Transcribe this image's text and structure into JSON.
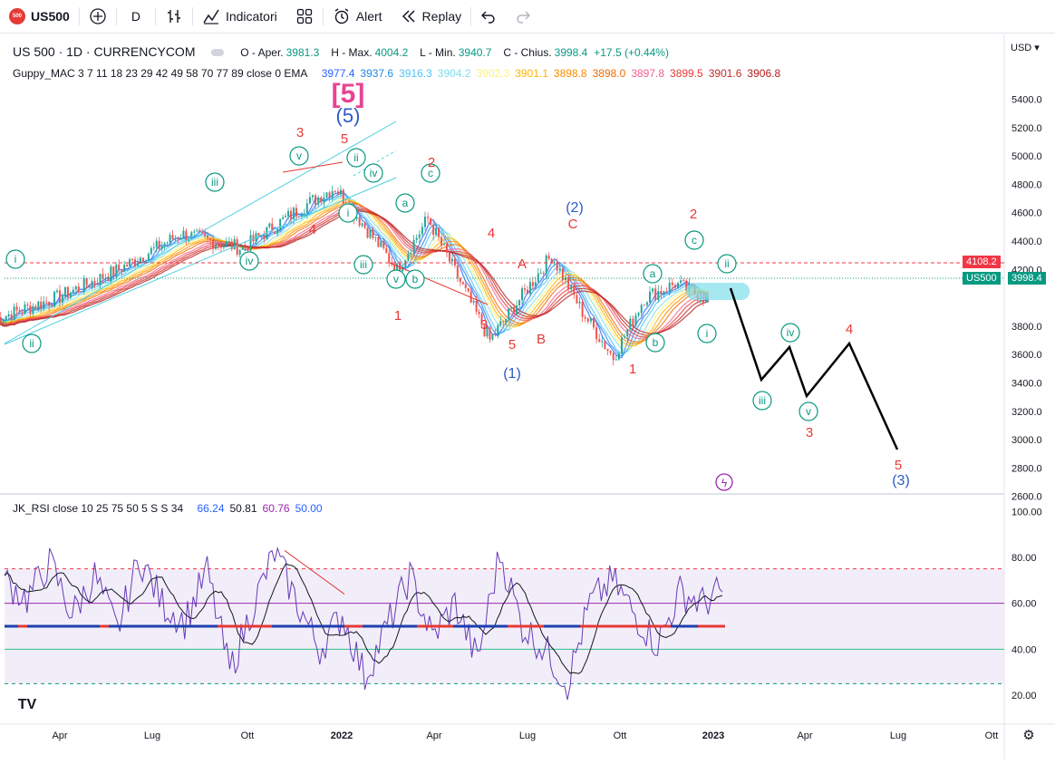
{
  "toolbar": {
    "symbol_badge": "500",
    "symbol": "US500",
    "interval": "D",
    "indicators_label": "Indicatori",
    "alert_label": "Alert",
    "replay_label": "Replay"
  },
  "legend": {
    "title": "US 500 · 1D · CURRENCYCOM",
    "o_label": "O - Aper.",
    "o_value": "3981.3",
    "h_label": "H - Max.",
    "h_value": "4004.2",
    "l_label": "L - Min.",
    "l_value": "3940.7",
    "c_label": "C - Chius.",
    "c_value": "3998.4",
    "change": "+17.5 (+0.44%)",
    "guppy_label": "Guppy_MAC 3 7 11 18 23 29 42 49 58 70 77 89 close 0 EMA",
    "guppy_values": [
      {
        "v": "3977.4",
        "color": "#2962ff"
      },
      {
        "v": "3937.6",
        "color": "#1e88e5"
      },
      {
        "v": "3916.3",
        "color": "#4fc3f7"
      },
      {
        "v": "3904.2",
        "color": "#80deea"
      },
      {
        "v": "3902.3",
        "color": "#fff176"
      },
      {
        "v": "3901.1",
        "color": "#ffb300"
      },
      {
        "v": "3898.8",
        "color": "#fb8c00"
      },
      {
        "v": "3898.0",
        "color": "#ef6c00"
      },
      {
        "v": "3897.8",
        "color": "#f06292"
      },
      {
        "v": "3899.5",
        "color": "#e53935"
      },
      {
        "v": "3901.6",
        "color": "#c62828"
      },
      {
        "v": "3906.8",
        "color": "#b71c1c"
      }
    ],
    "rsi_label": "JK_RSI close 10 25 75 50 5 S S 34",
    "rsi_values": [
      {
        "v": "66.24",
        "color": "#2962ff"
      },
      {
        "v": "50.81",
        "color": "#131722"
      },
      {
        "v": "60.76",
        "color": "#9c27b0"
      },
      {
        "v": "50.00",
        "color": "#2962ff"
      }
    ]
  },
  "axis": {
    "currency": "USD",
    "price_ticks": [
      "5400.0",
      "5200.0",
      "5000.0",
      "4800.0",
      "4600.0",
      "4400.0",
      "4200.0",
      "3800.0",
      "3600.0",
      "3400.0",
      "3200.0",
      "3000.0",
      "2800.0",
      "2600.0"
    ],
    "rsi_ticks": [
      "100.00",
      "80.00",
      "60.00",
      "40.00",
      "20.00"
    ],
    "time_ticks": [
      "Apr",
      "Lug",
      "Ott",
      "2022",
      "Apr",
      "Lug",
      "Ott",
      "2023",
      "Apr",
      "Lug",
      "Ott"
    ],
    "tag_high": "4108.2",
    "tag_symbol": "US500",
    "tag_last": "3998.4"
  },
  "colors": {
    "up": "#26a69a",
    "down": "#ef5350",
    "wave_green": "#089981",
    "wave_red": "#e53935",
    "wave_blue": "#2d5bc7",
    "projection": "#000000"
  },
  "chart_data": [
    {
      "type": "line",
      "title": "US 500 · 1D · CURRENCYCOM",
      "x_ticks": [
        "Apr",
        "Lug",
        "Ott",
        "2022",
        "Apr",
        "Lug",
        "Ott",
        "2023",
        "Apr",
        "Lug",
        "Ott"
      ],
      "ylim": [
        2500,
        5550
      ],
      "series": [
        {
          "name": "US500",
          "x": [
            "2021-02",
            "2021-04",
            "2021-06",
            "2021-08",
            "2021-10",
            "2021-12",
            "2022-01",
            "2022-03",
            "2022-04",
            "2022-06",
            "2022-08",
            "2022-09",
            "2022-10",
            "2022-11",
            "2022-12",
            "2023-01"
          ],
          "values": [
            3850,
            4000,
            4200,
            4450,
            4350,
            4650,
            4780,
            4200,
            4560,
            3700,
            4300,
            3900,
            3580,
            4000,
            4100,
            3998
          ]
        },
        {
          "name": "projection",
          "x": [
            "2023-01",
            "2023-02",
            "2023-03",
            "2023-03b",
            "2023-05",
            "2023-07"
          ],
          "values": [
            3998,
            3280,
            3510,
            3170,
            3530,
            2780
          ]
        }
      ],
      "annotations": [
        {
          "text": "[5]",
          "color": "#e84393"
        },
        {
          "text": "(5)",
          "color": "#2d5bc7"
        },
        {
          "text": "(1)",
          "color": "#2d5bc7"
        },
        {
          "text": "(2)",
          "color": "#2d5bc7"
        },
        {
          "text": "(3)",
          "color": "#2d5bc7"
        },
        {
          "text": "A",
          "color": "#e53935"
        },
        {
          "text": "B",
          "color": "#e53935"
        },
        {
          "text": "C",
          "color": "#e53935"
        },
        {
          "text": "1",
          "color": "#e53935"
        },
        {
          "text": "2",
          "color": "#e53935"
        },
        {
          "text": "3",
          "color": "#e53935"
        },
        {
          "text": "4",
          "color": "#e53935"
        },
        {
          "text": "5",
          "color": "#e53935"
        },
        {
          "text": "i",
          "color": "#089981"
        },
        {
          "text": "ii",
          "color": "#089981"
        },
        {
          "text": "iii",
          "color": "#089981"
        },
        {
          "text": "iv",
          "color": "#089981"
        },
        {
          "text": "v",
          "color": "#089981"
        },
        {
          "text": "a",
          "color": "#089981"
        },
        {
          "text": "b",
          "color": "#089981"
        },
        {
          "text": "c",
          "color": "#089981"
        }
      ]
    },
    {
      "type": "line",
      "title": "JK_RSI close 10 25 75 50 5 S S 34",
      "ylim": [
        15,
        105
      ],
      "series": [
        {
          "name": "RSI",
          "values": [
            70,
            62,
            78,
            55,
            72,
            48,
            80,
            60,
            52,
            74,
            30,
            58,
            82,
            60,
            40,
            55,
            28,
            50,
            72,
            45,
            60,
            35,
            82,
            50,
            40,
            25,
            60,
            70,
            55,
            42,
            65,
            60,
            66
          ]
        }
      ],
      "levels": [
        75,
        60,
        50,
        40,
        25
      ]
    }
  ]
}
